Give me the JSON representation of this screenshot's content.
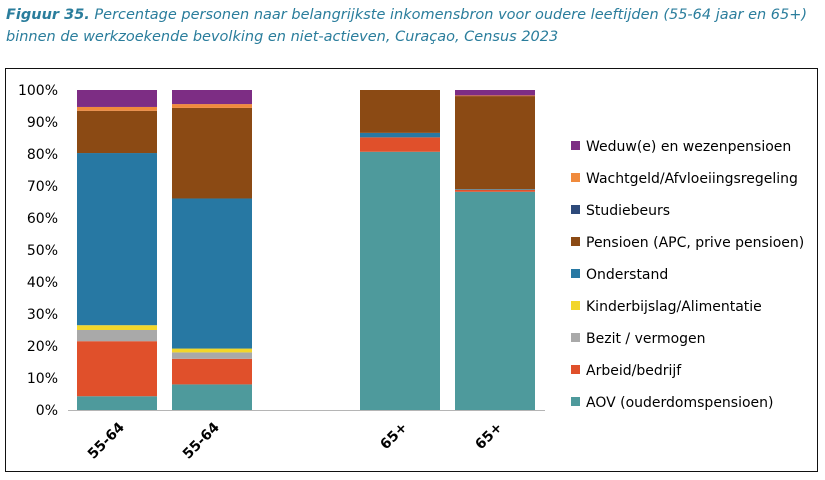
{
  "caption": {
    "label": "Figuur 35.",
    "text": "Percentage personen naar belangrijkste inkomensbron voor oudere leeftijden (55-64 jaar en 65+) binnen de werkzoekende bevolking en niet-actieven, Curaçao, Census 2023"
  },
  "chart_data": {
    "type": "bar",
    "stacked": true,
    "categories": [
      "55-64",
      "55-64",
      "65+",
      "65+"
    ],
    "ylim": [
      0,
      100
    ],
    "yticks": [
      "0%",
      "10%",
      "20%",
      "30%",
      "40%",
      "50%",
      "60%",
      "70%",
      "80%",
      "90%",
      "100%"
    ],
    "legend_position": "right",
    "series": [
      {
        "name": "AOV (ouderdomspensioen)",
        "color": "#4e9a9c",
        "values": [
          4.3,
          8.0,
          80.7,
          68.2
        ]
      },
      {
        "name": "Arbeid/bedrijf",
        "color": "#e0502b",
        "values": [
          17.2,
          8.0,
          4.5,
          0.6
        ]
      },
      {
        "name": "Bezit / vermogen",
        "color": "#a9a9a9",
        "values": [
          3.5,
          2.0,
          0.0,
          0.0
        ]
      },
      {
        "name": "Kinderbijslag/Alimentatie",
        "color": "#f2d62a",
        "values": [
          1.5,
          1.2,
          0.0,
          0.0
        ]
      },
      {
        "name": "Onderstand",
        "color": "#2778a3",
        "values": [
          53.8,
          46.9,
          1.4,
          0.2
        ]
      },
      {
        "name": "Pensioen (APC, prive pensioen)",
        "color": "#8b4a14",
        "values": [
          13.2,
          28.3,
          13.4,
          29.1
        ]
      },
      {
        "name": "Studiebeurs",
        "color": "#2e4a7a",
        "values": [
          0.0,
          0.0,
          0.0,
          0.0
        ]
      },
      {
        "name": "Wachtgeld/Afvloeiingsregeling",
        "color": "#f08a3c",
        "values": [
          1.2,
          1.2,
          0.0,
          0.2
        ]
      },
      {
        "name": "Weduw(e) en wezenpensioen",
        "color": "#7d2d84",
        "values": [
          5.3,
          4.4,
          0.0,
          1.7
        ]
      }
    ]
  }
}
